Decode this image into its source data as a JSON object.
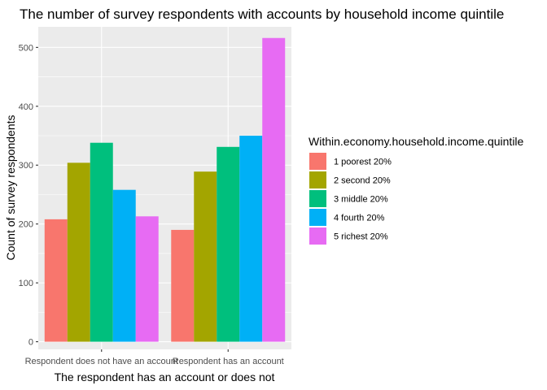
{
  "chart_data": {
    "type": "bar",
    "title": "The number of survey respondents with accounts by household income quintile",
    "xlabel": "The respondent has an account or does not",
    "ylabel": "Count of survey respondents",
    "categories": [
      "Respondent does not have an account",
      "Respondent has an account"
    ],
    "yticks": [
      0,
      100,
      200,
      300,
      400,
      500
    ],
    "ylim": [
      -13,
      535
    ],
    "grid": true,
    "legend_title": "Within.economy.household.income.quintile",
    "legend_position": "right",
    "series": [
      {
        "name": "1 poorest 20%",
        "color": "#F8766D",
        "values": [
          208,
          190
        ]
      },
      {
        "name": "2 second 20%",
        "color": "#A3A500",
        "values": [
          304,
          289
        ]
      },
      {
        "name": "3 middle 20%",
        "color": "#00BF7D",
        "values": [
          338,
          331
        ]
      },
      {
        "name": "4 fourth 20%",
        "color": "#00B0F6",
        "values": [
          258,
          350
        ]
      },
      {
        "name": "5 richest 20%",
        "color": "#E76BF3",
        "values": [
          213,
          516
        ]
      }
    ],
    "panel_background": "#EBEBEB",
    "grid_color": "#FFFFFF"
  }
}
